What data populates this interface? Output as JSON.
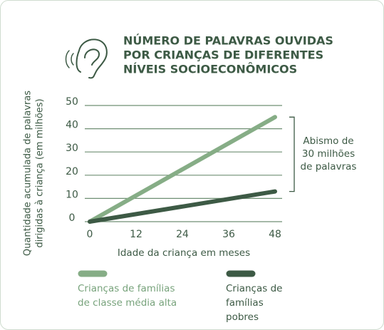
{
  "chart_data": {
    "type": "line",
    "title": [
      "NÚMERO DE PALAVRAS OUVIDAS",
      "POR CRIANÇAS DE DIFERENTES",
      "NÍVEIS SOCIOECONÔMICOS"
    ],
    "ylabel": [
      "Quantidade acumulada de palavras",
      "dirigidas à criança (em milhões)"
    ],
    "xlabel": "Idade da criança em meses",
    "x": [
      0,
      48
    ],
    "series": [
      {
        "name": "Crianças de famílias de classe média alta",
        "color": "#86ad86",
        "values": [
          0,
          45
        ]
      },
      {
        "name": "Crianças de famílias pobres",
        "color": "#3d5a45",
        "values": [
          0,
          13
        ]
      }
    ],
    "xlim": [
      0,
      48
    ],
    "xticks": [
      0,
      12,
      24,
      36,
      48
    ],
    "ylim": [
      0,
      50
    ],
    "yticks": [
      0,
      10,
      20,
      30,
      40,
      50
    ],
    "grid": true,
    "annotation": [
      "Abismo de",
      "30 milhões",
      "de palavras"
    ]
  }
}
